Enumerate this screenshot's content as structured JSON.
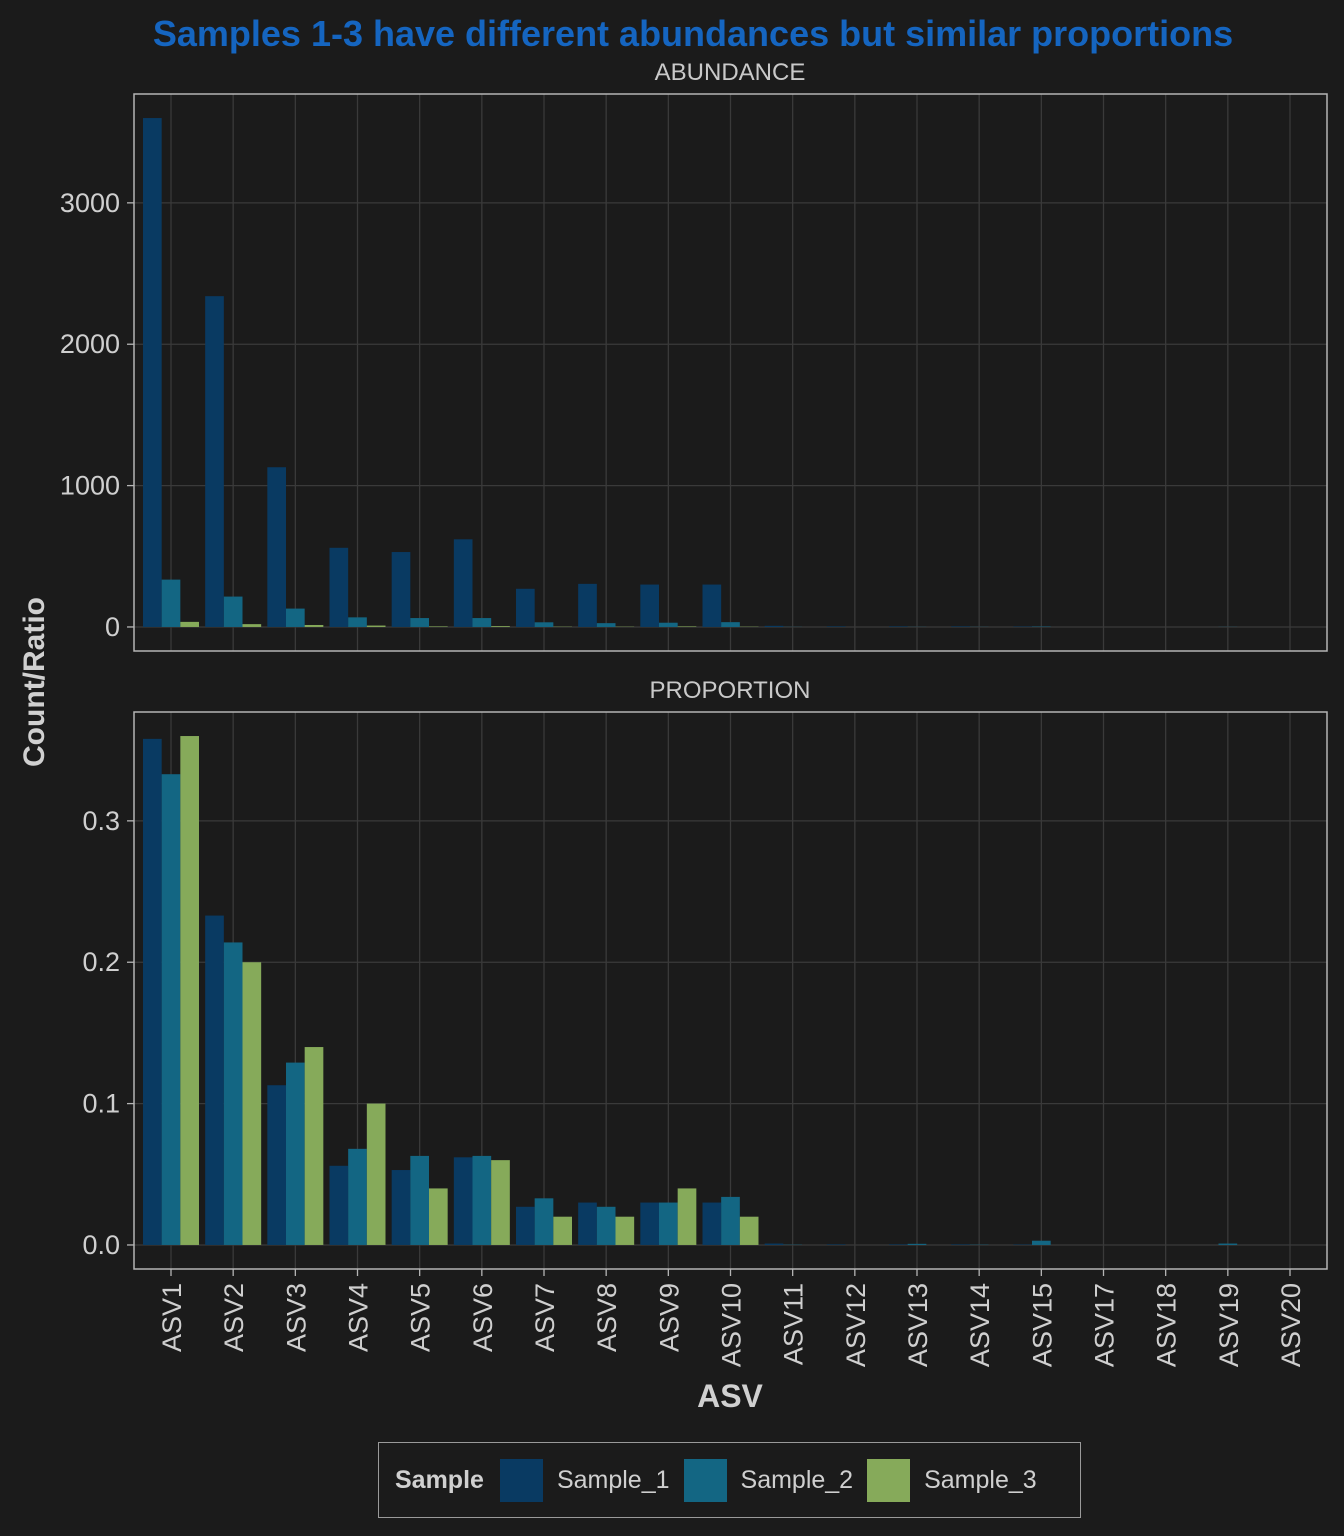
{
  "chart_data": {
    "type": "bar",
    "title": "Samples 1-3 have different abundances but similar proportions",
    "xlabel": "ASV",
    "ylabel": "Count/Ratio",
    "categories": [
      "ASV1",
      "ASV2",
      "ASV3",
      "ASV4",
      "ASV5",
      "ASV6",
      "ASV7",
      "ASV8",
      "ASV9",
      "ASV10",
      "ASV11",
      "ASV12",
      "ASV13",
      "ASV14",
      "ASV15",
      "ASV17",
      "ASV18",
      "ASV19",
      "ASV20"
    ],
    "colors": {
      "Sample_1": "#093a62",
      "Sample_2": "#136683",
      "Sample_3": "#86aa5a",
      "title": "#1565c0"
    },
    "legend": {
      "title": "Sample",
      "position": "bottom"
    },
    "grid": true,
    "panels": [
      {
        "label": "ABUNDANCE",
        "ylim": [
          -170,
          3770
        ],
        "yticks": [
          0,
          1000,
          2000,
          3000
        ],
        "ytick_labels": [
          "0",
          "1000",
          "2000",
          "3000"
        ],
        "series": [
          {
            "name": "Sample_1",
            "values": [
              3600,
              2340,
              1130,
              560,
              530,
              620,
              270,
              305,
              300,
              300,
              8,
              4,
              4,
              4,
              3,
              0,
              0,
              0,
              0
            ]
          },
          {
            "name": "Sample_2",
            "values": [
              335,
              215,
              130,
              68,
              63,
              63,
              33,
              27,
              30,
              34,
              1,
              0,
              1,
              1,
              3,
              0,
              0,
              1,
              0
            ]
          },
          {
            "name": "Sample_3",
            "values": [
              36,
              20,
              14,
              10,
              4,
              6,
              2,
              2,
              4,
              2,
              0,
              0,
              0,
              0,
              0,
              0,
              0,
              0,
              0
            ]
          }
        ]
      },
      {
        "label": "PROPORTION",
        "ylim": [
          -0.017,
          0.377
        ],
        "yticks": [
          0,
          0.1,
          0.2,
          0.3
        ],
        "ytick_labels": [
          "0.0",
          "0.1",
          "0.2",
          "0.3"
        ],
        "series": [
          {
            "name": "Sample_1",
            "values": [
              0.358,
              0.233,
              0.113,
              0.056,
              0.053,
              0.062,
              0.027,
              0.03,
              0.03,
              0.03,
              0.001,
              0.0004,
              0.0004,
              0.0004,
              0.0003,
              0,
              0,
              0,
              0
            ]
          },
          {
            "name": "Sample_2",
            "values": [
              0.333,
              0.214,
              0.129,
              0.068,
              0.063,
              0.063,
              0.033,
              0.027,
              0.03,
              0.034,
              0.0002,
              0,
              0.0008,
              0.0002,
              0.003,
              0,
              0,
              0.001,
              0
            ]
          },
          {
            "name": "Sample_3",
            "values": [
              0.36,
              0.2,
              0.14,
              0.1,
              0.04,
              0.06,
              0.02,
              0.02,
              0.04,
              0.02,
              0,
              0,
              0,
              0,
              0,
              0,
              0,
              0,
              0
            ]
          }
        ]
      }
    ]
  }
}
